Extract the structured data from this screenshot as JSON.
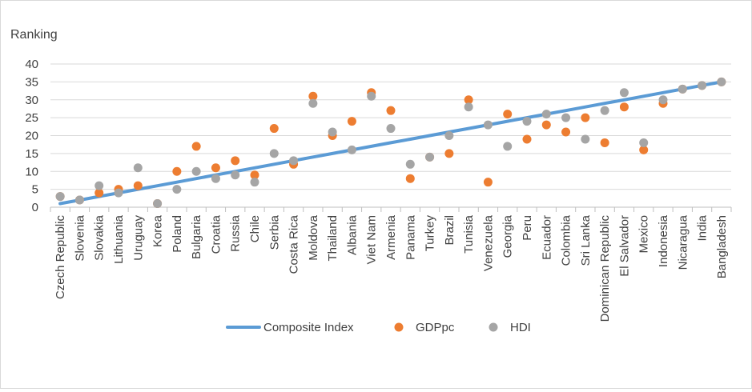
{
  "chart_data": {
    "type": "line",
    "ylabel": "Ranking",
    "ylim": [
      0,
      40
    ],
    "yticks": [
      0,
      5,
      10,
      15,
      20,
      25,
      30,
      35,
      40
    ],
    "grid": "horizontal",
    "legend_position": "bottom",
    "categories": [
      "Czech Republic",
      "Slovenia",
      "Slovakia",
      "Lithuania",
      "Uruguay",
      "Korea",
      "Poland",
      "Bulgaria",
      "Croatia",
      "Russia",
      "Chile",
      "Serbia",
      "Costa Rica",
      "Moldova",
      "Thailand",
      "Albania",
      "Viet Nam",
      "Armenia",
      "Panama",
      "Turkey",
      "Brazil",
      "Tunisia",
      "Venezuela",
      "Georgia",
      "Peru",
      "Ecuador",
      "Colombia",
      "Sri Lanka",
      "Dominican Republic",
      "El Salvador",
      "Mexico",
      "Indonesia",
      "Nicaragua",
      "India",
      "Bangladesh"
    ],
    "series": [
      {
        "name": "Composite Index",
        "kind": "line",
        "color": "#5b9bd5",
        "values": [
          1,
          2,
          3,
          4,
          5,
          6,
          7,
          8,
          9,
          10,
          11,
          12,
          13,
          14,
          15,
          16,
          17,
          18,
          19,
          20,
          21,
          22,
          23,
          24,
          25,
          26,
          27,
          28,
          29,
          30,
          31,
          32,
          33,
          34,
          35
        ]
      },
      {
        "name": "GDPpc",
        "kind": "marker",
        "color": "#ed7d31",
        "values": [
          3,
          2,
          4,
          5,
          6,
          1,
          10,
          17,
          11,
          13,
          9,
          22,
          12,
          31,
          20,
          24,
          32,
          27,
          8,
          14,
          15,
          30,
          7,
          26,
          19,
          23,
          21,
          25,
          18,
          28,
          16,
          29,
          33,
          34,
          35
        ]
      },
      {
        "name": "HDI",
        "kind": "marker",
        "color": "#a5a5a5",
        "values": [
          3,
          2,
          6,
          4,
          11,
          1,
          5,
          10,
          8,
          9,
          7,
          15,
          13,
          29,
          21,
          16,
          31,
          22,
          12,
          14,
          20,
          28,
          23,
          17,
          24,
          26,
          25,
          19,
          27,
          32,
          18,
          30,
          33,
          34,
          35
        ]
      }
    ]
  }
}
